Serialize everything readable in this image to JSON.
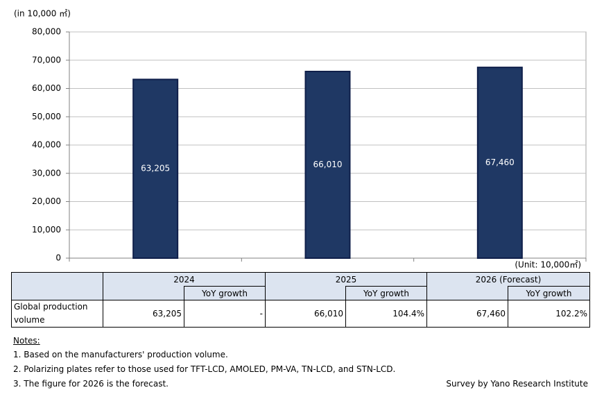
{
  "chart_data": {
    "type": "bar",
    "y_axis_label": "(in 10,000 ㎡)",
    "unit_note": "(Unit: 10,000㎡)",
    "categories": [
      null,
      null,
      null
    ],
    "values": [
      63205,
      66010,
      67460
    ],
    "value_labels": [
      "63,205",
      "66,010",
      "67,460"
    ],
    "color": "#1f3864",
    "edge_color": "#0f1f4a",
    "ylim": [
      0,
      80000
    ],
    "yticks": [
      0,
      {
        "value": 10000,
        "label": "10,000"
      },
      {
        "value": 20000,
        "label": "20,000"
      },
      {
        "value": 30000,
        "label": "30,000"
      },
      {
        "value": 40000,
        "label": "40,000"
      },
      {
        "value": 50000,
        "label": "50,000"
      },
      {
        "value": 60000,
        "label": "60,000"
      },
      {
        "value": 70000,
        "label": "70,000"
      },
      {
        "value": 80000,
        "label": "80,000"
      }
    ],
    "grid": true
  },
  "table": {
    "years": [
      "2024",
      "2025",
      "2026 (Forecast)"
    ],
    "sub_header": "YoY growth",
    "row": {
      "label": "Global production volume",
      "cells": [
        "63,205",
        "-",
        "66,010",
        "104.4%",
        "67,460",
        "102.2%"
      ]
    }
  },
  "notes": {
    "title": "Notes:",
    "items": [
      "1. Based on the manufacturers' production volume.",
      "2. Polarizing plates refer to those used for TFT-LCD, AMOLED, PM-VA, TN-LCD, and STN-LCD.",
      "3. The figure for 2026 is the forecast."
    ],
    "source": "Survey by Yano Research Institute"
  }
}
